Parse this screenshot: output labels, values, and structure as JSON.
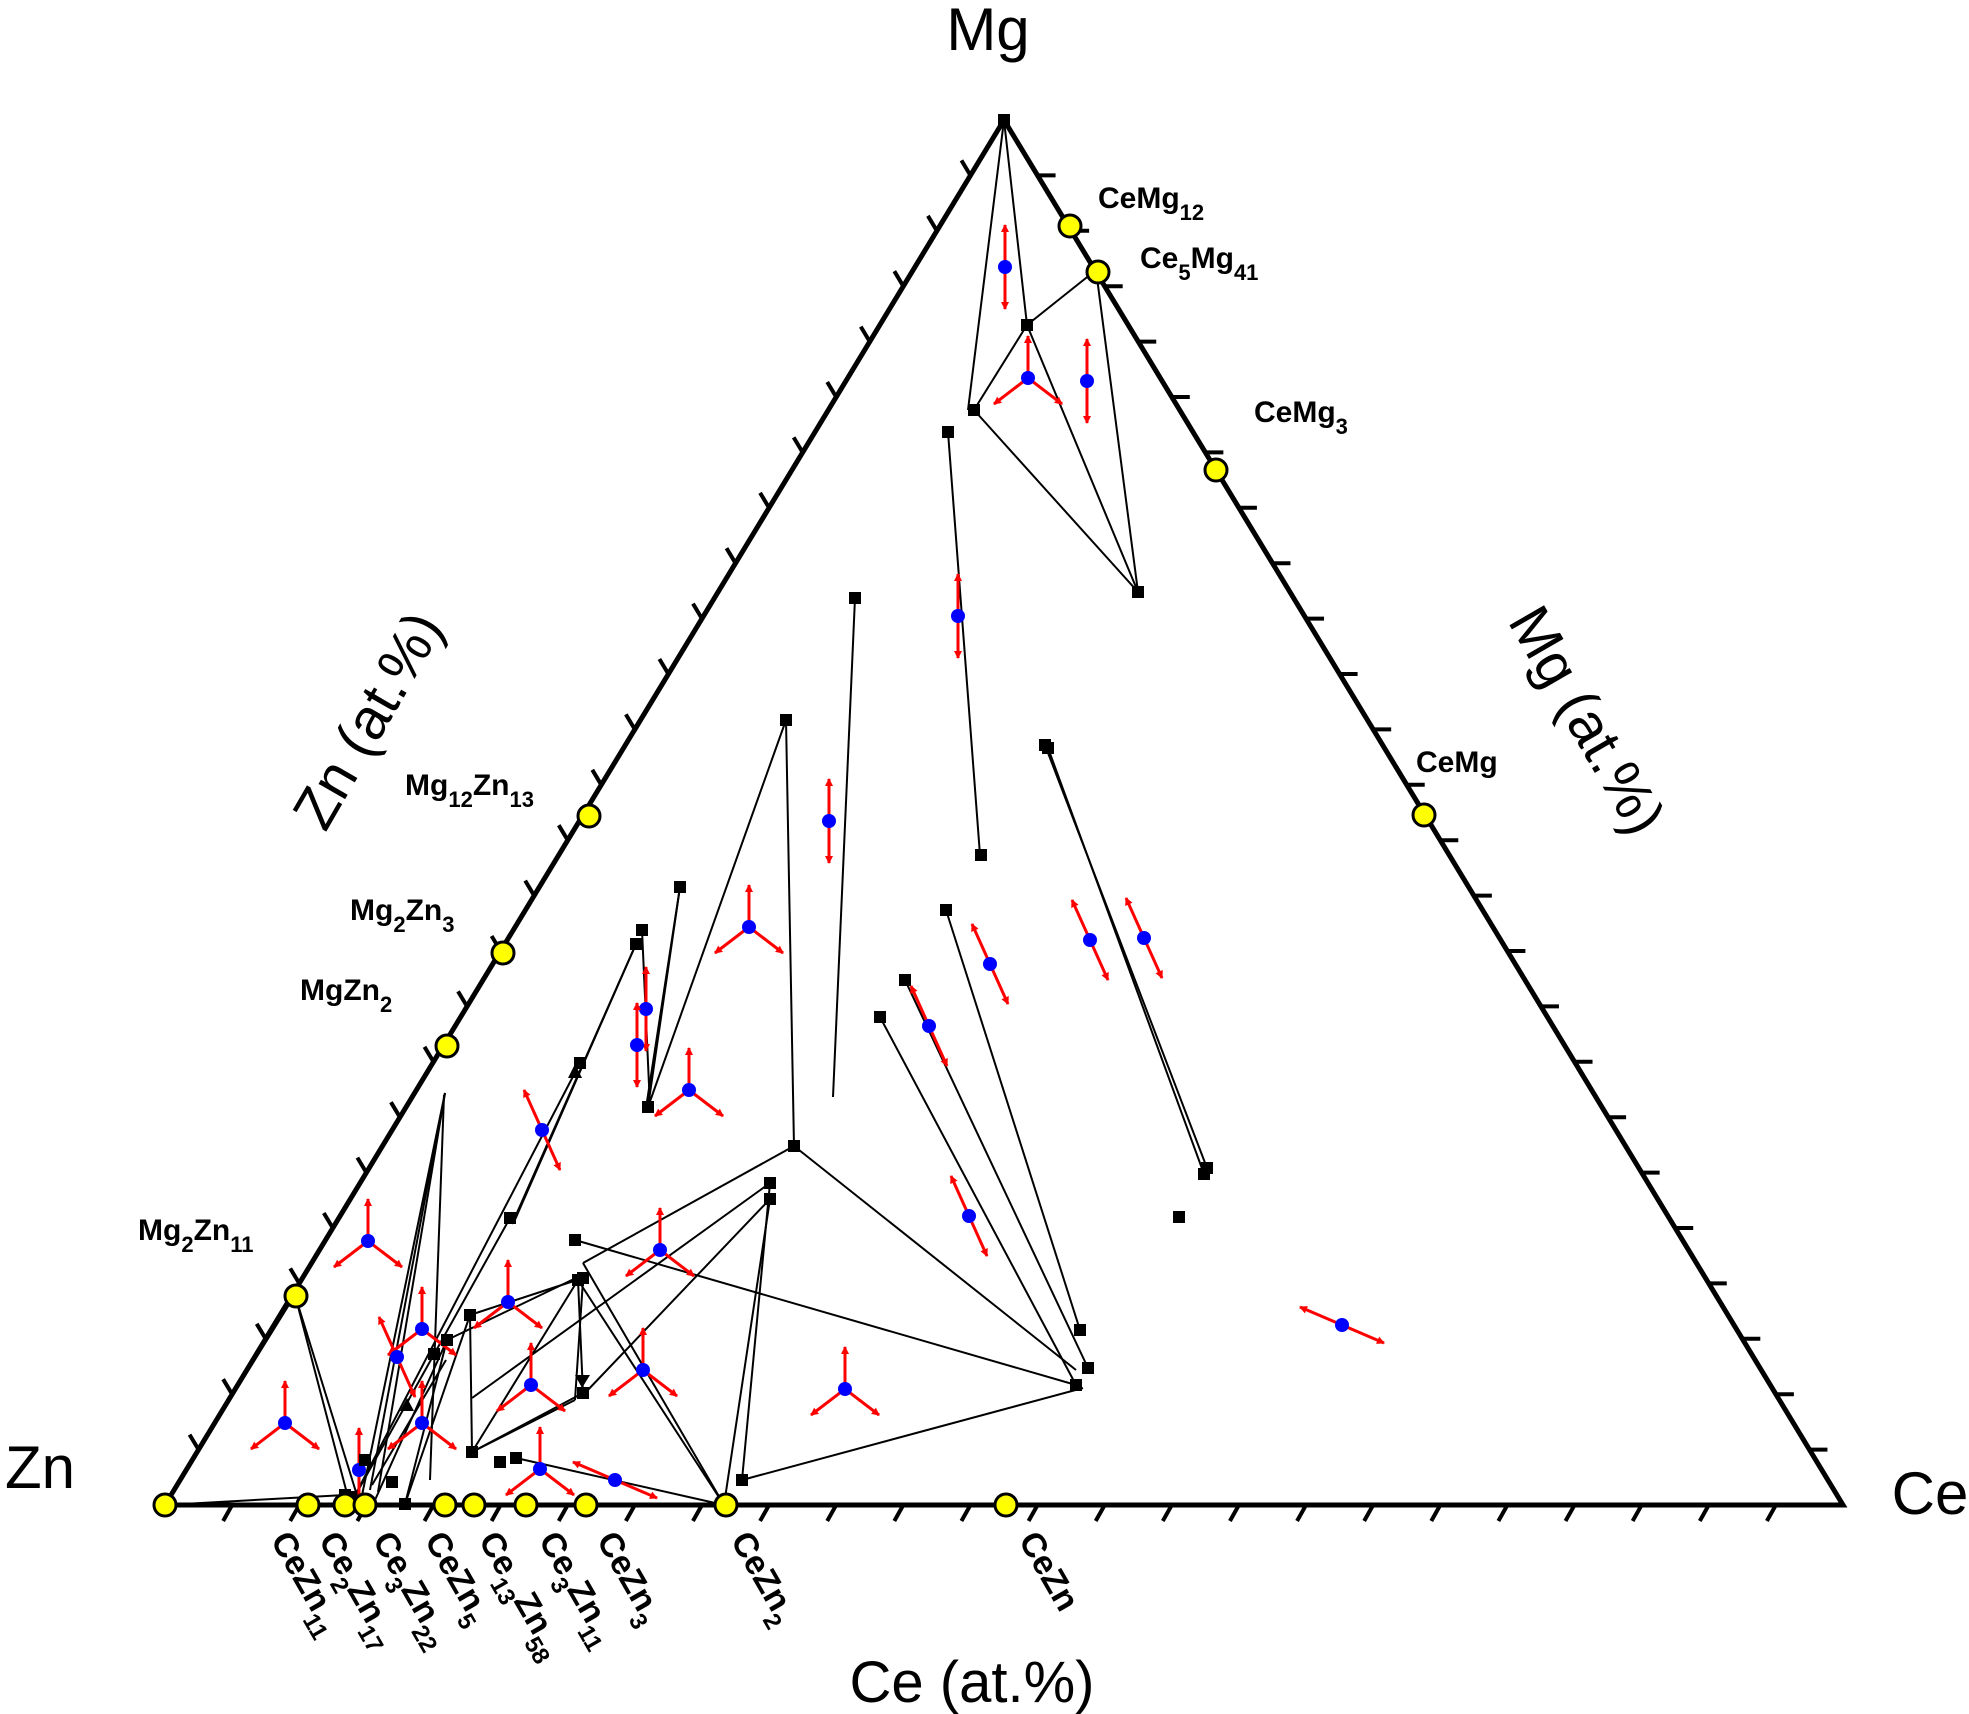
{
  "corners": {
    "top": "Mg",
    "left": "Zn",
    "right": "Ce"
  },
  "axis_titles": {
    "left": "Zn (at.%)",
    "right": "Mg (at.%)",
    "bottom": "Ce (at.%)"
  },
  "phase_labels": [
    {
      "id": "CeMg12",
      "base": "CeMg",
      "sub": "12"
    },
    {
      "id": "Ce5Mg41",
      "base": "Ce",
      "sub": "5",
      "base2": "Mg",
      "sub2": "41"
    },
    {
      "id": "CeMg3",
      "base": "CeMg",
      "sub": "3"
    },
    {
      "id": "CeMg",
      "base": "CeMg"
    },
    {
      "id": "Mg12Zn13",
      "base": "Mg",
      "sub": "12",
      "base2": "Zn",
      "sub2": "13"
    },
    {
      "id": "Mg2Zn3",
      "base": "Mg",
      "sub": "2",
      "base2": "Zn",
      "sub2": "3"
    },
    {
      "id": "MgZn2",
      "base": "MgZn",
      "sub": "2"
    },
    {
      "id": "Mg2Zn11",
      "base": "Mg",
      "sub": "2",
      "base2": "Zn",
      "sub2": "11"
    }
  ],
  "bottom_labels": [
    {
      "id": "CeZn11",
      "base": "CeZn",
      "sub": "11"
    },
    {
      "id": "Ce2Zn17",
      "base": "Ce",
      "sub": "2",
      "base2": "Zn",
      "sub2": "17"
    },
    {
      "id": "Ce3Zn22",
      "base": "Ce",
      "sub": "3",
      "base2": "Zn",
      "sub2": "22"
    },
    {
      "id": "CeZn5",
      "base": "CeZn",
      "sub": "5"
    },
    {
      "id": "Ce13Zn58",
      "base": "Ce",
      "sub": "13",
      "base2": "Zn",
      "sub2": "58"
    },
    {
      "id": "Ce3Zn11",
      "base": "Ce",
      "sub": "3",
      "base2": "Zn",
      "sub2": "11"
    },
    {
      "id": "CeZn3",
      "base": "CeZn",
      "sub": "3"
    },
    {
      "id": "CeZn2",
      "base": "CeZn",
      "sub": "2"
    },
    {
      "id": "CeZn",
      "base": "CeZn"
    }
  ],
  "colors": {
    "frame": "#000000",
    "compound_marker": "#ffff00",
    "tie_line": "#000000",
    "data_point": "#0000ff",
    "arrow": "#ff0000",
    "vertex": "#000000",
    "background": "#ffffff"
  },
  "axis_ticks": {
    "count": 25,
    "step_at_pct": 4
  }
}
